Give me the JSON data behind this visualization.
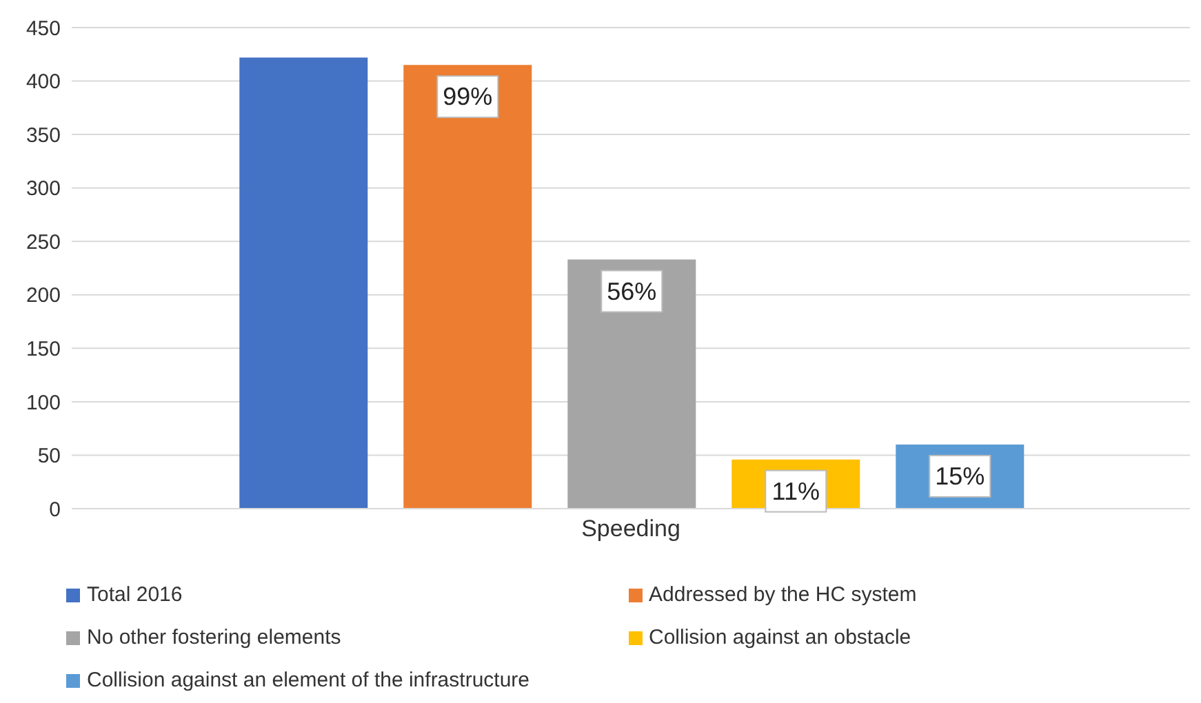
{
  "chart_data": {
    "type": "bar",
    "categories": [
      "Speeding"
    ],
    "series": [
      {
        "name": "Total 2016",
        "color": "#4472c4",
        "values": [
          422
        ]
      },
      {
        "name": "Addressed by the HC system",
        "color": "#ed7d31",
        "values": [
          415
        ]
      },
      {
        "name": "No other fostering elements",
        "color": "#a5a5a5",
        "values": [
          233
        ]
      },
      {
        "name": "Collision against an obstacle",
        "color": "#ffc000",
        "values": [
          46
        ]
      },
      {
        "name": "Collision against an element of the infrastructure",
        "color": "#5b9bd5",
        "values": [
          60
        ]
      }
    ],
    "annotations": [
      "99%",
      "56%",
      "11%",
      "15%"
    ],
    "ylim": [
      0,
      450
    ],
    "yticks": [
      0,
      50,
      100,
      150,
      200,
      250,
      300,
      350,
      400,
      450
    ],
    "grid": "y",
    "legend": "bottom"
  }
}
